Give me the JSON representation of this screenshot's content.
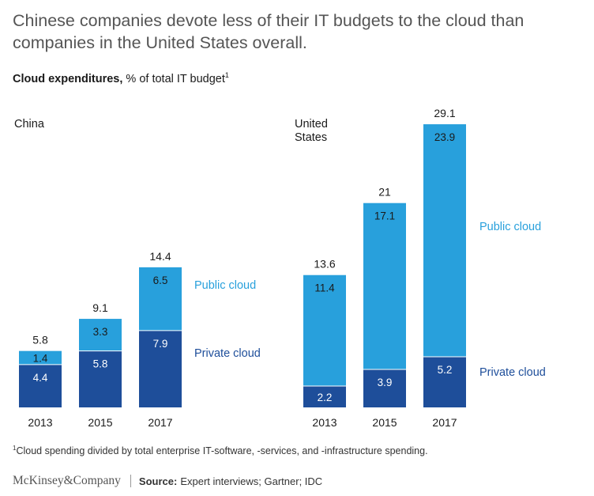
{
  "title": "Chinese companies devote less of their IT budgets to the cloud than companies in the United States overall.",
  "subtitle": {
    "lead": "Cloud expenditures,",
    "rest": " % of total IT budget",
    "note_mark": "1"
  },
  "colors": {
    "public_cloud": "#28a0dc",
    "private_cloud": "#1e4e9a",
    "public_label": "#28a0dc",
    "private_label": "#1e4e9a"
  },
  "chart_data": [
    {
      "type": "bar",
      "stacked": true,
      "panel": "China",
      "categories": [
        "2013",
        "2015",
        "2017"
      ],
      "series": [
        {
          "name": "Private cloud",
          "values": [
            4.4,
            5.8,
            7.9
          ]
        },
        {
          "name": "Public cloud",
          "values": [
            1.4,
            3.3,
            6.5
          ]
        }
      ],
      "totals": [
        "5.8",
        "9.1",
        "14.4"
      ],
      "grid": false,
      "ylim": [
        0,
        30
      ]
    },
    {
      "type": "bar",
      "stacked": true,
      "panel": "United States",
      "categories": [
        "2013",
        "2015",
        "2017"
      ],
      "series": [
        {
          "name": "Private cloud",
          "values": [
            2.2,
            3.9,
            5.2
          ]
        },
        {
          "name": "Public cloud",
          "values": [
            11.4,
            17.1,
            23.9
          ]
        }
      ],
      "totals": [
        "13.6",
        "21",
        "29.1"
      ],
      "grid": false,
      "ylim": [
        0,
        30
      ]
    }
  ],
  "footnote": {
    "mark": "1",
    "text": "Cloud spending divided by total enterprise IT-software, -services, and -infrastructure spending."
  },
  "brand": "McKinsey&Company",
  "source": {
    "label": "Source:",
    "text": "Expert interviews; Gartner; IDC"
  }
}
